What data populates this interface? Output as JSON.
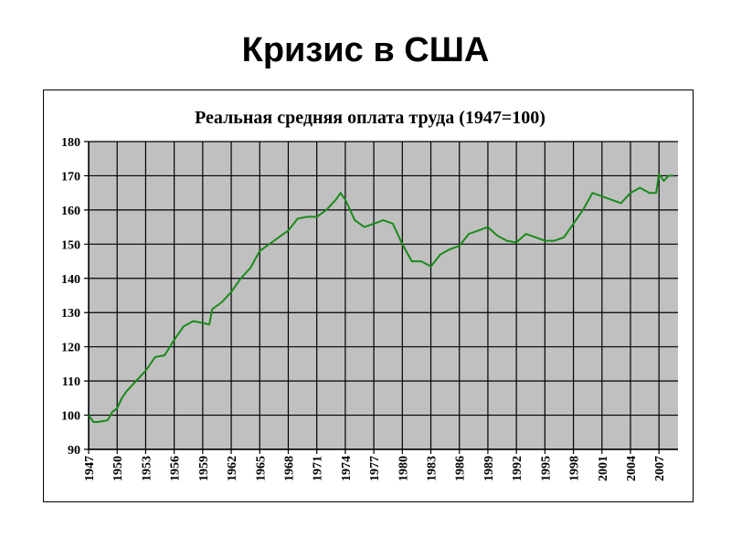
{
  "slide": {
    "title": "Кризис в США"
  },
  "chart_data": {
    "type": "line",
    "title": "Реальная средняя оплата труда (1947=100)",
    "xlabel": "",
    "ylabel": "",
    "ylim": [
      90,
      180
    ],
    "xlim": [
      1947,
      2009
    ],
    "yticks": [
      90,
      100,
      110,
      120,
      130,
      140,
      150,
      160,
      170,
      180
    ],
    "xticks": [
      1947,
      1950,
      1953,
      1956,
      1959,
      1962,
      1965,
      1968,
      1971,
      1974,
      1977,
      1980,
      1983,
      1986,
      1989,
      1992,
      1995,
      1998,
      2001,
      2004,
      2007
    ],
    "grid": true,
    "legend": "none",
    "colors": {
      "line": "#1a8a1a",
      "plot_bg": "#c0c0c0",
      "grid": "#000000"
    },
    "series": [
      {
        "x": [
          1947,
          1947.5,
          1948,
          1949,
          1949.5,
          1950,
          1950.5,
          1951,
          1952,
          1953,
          1954,
          1955,
          1956,
          1957,
          1958,
          1959,
          1959.7,
          1960,
          1961,
          1962,
          1963,
          1964,
          1965,
          1966,
          1967,
          1968,
          1969,
          1970,
          1971,
          1972,
          1973,
          1973.5,
          1974,
          1975,
          1976,
          1977,
          1978,
          1979,
          1980,
          1981,
          1982,
          1983,
          1984,
          1985,
          1986,
          1987,
          1988,
          1989,
          1990,
          1991,
          1992,
          1993,
          1994,
          1995,
          1996,
          1997,
          1998,
          1999,
          2000,
          2001,
          2002,
          2003,
          2004,
          2005,
          2006,
          2006.7,
          2007,
          2007.5,
          2008,
          2008.5
        ],
        "y": [
          100,
          98,
          98,
          98.5,
          101,
          102,
          105,
          107,
          110,
          113,
          117,
          117.5,
          122,
          126,
          127.5,
          127,
          126.5,
          131,
          133,
          136,
          140,
          143,
          148,
          150,
          152,
          154,
          157.5,
          158,
          158,
          160,
          163,
          165,
          163,
          157,
          155,
          156,
          157,
          156,
          150,
          145,
          145,
          143.5,
          147,
          148.5,
          149.5,
          153,
          154,
          155,
          152.5,
          151,
          150.5,
          153,
          152,
          151,
          151,
          152,
          156,
          160,
          165,
          164,
          163,
          162,
          165,
          166.5,
          165,
          165,
          170.5,
          168.5,
          170,
          170
        ]
      }
    ]
  }
}
